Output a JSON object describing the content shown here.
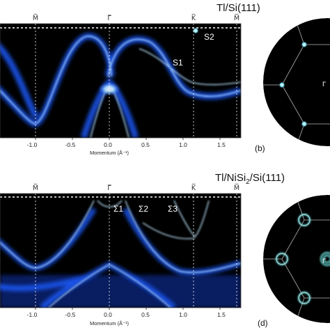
{
  "top": {
    "title": "Tl/Si(111)",
    "sym_points": [
      "M̅",
      "Γ̅",
      "K̅",
      "M̅"
    ],
    "labels": [
      "S1",
      "S2"
    ],
    "panel_label": "(b)",
    "gamma_label": "Γ̅"
  },
  "bottom": {
    "title_prefix": "Tl/NiSi",
    "title_sub": "2",
    "title_suffix": "/Si(111)",
    "sym_points": [
      "M̅",
      "Γ̅",
      "K̅",
      "M̅"
    ],
    "labels": [
      "Σ1",
      "Σ2",
      "Σ3"
    ],
    "panel_label": "(d)",
    "gamma_label": "Γ̅"
  },
  "axis": {
    "label": "Momentum (Å⁻¹)",
    "ticks": [
      "-1.0",
      "-0.5",
      "0.0",
      "0.5",
      "1.0",
      "1.5"
    ]
  },
  "colors": {
    "band_bright": "#bfe6ff",
    "band_mid": "#1f6bff",
    "background": "#000000",
    "fs_spot": "#5fe0e0"
  }
}
